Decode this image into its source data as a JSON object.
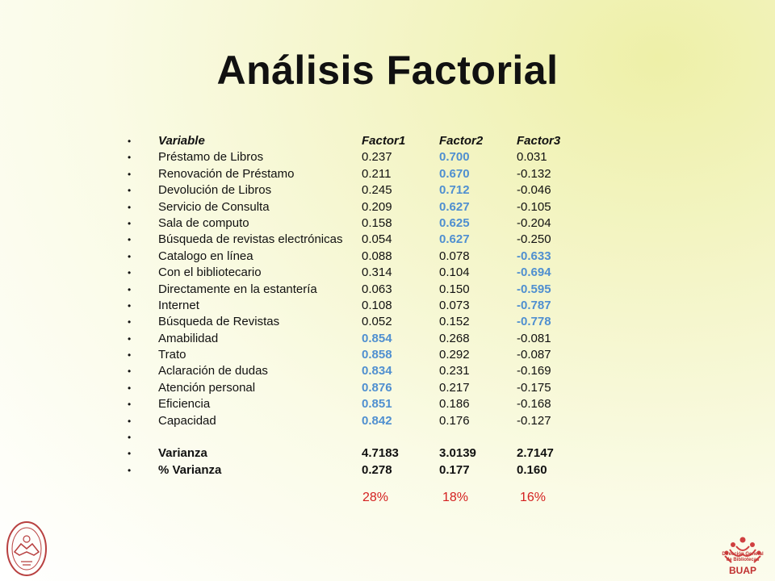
{
  "title": "Análisis Factorial",
  "header": [
    "Variable",
    "Factor1",
    "Factor2",
    "Factor3"
  ],
  "rows": [
    {
      "v": "Préstamo de Libros",
      "f1": "0.237",
      "f2": "0.700",
      "f3": "0.031",
      "hi": 2
    },
    {
      "v": "Renovación de Préstamo",
      "f1": "0.211",
      "f2": "0.670",
      "f3": "-0.132",
      "hi": 2
    },
    {
      "v": "Devolución de Libros",
      "f1": "0.245",
      "f2": "0.712",
      "f3": "-0.046",
      "hi": 2
    },
    {
      "v": "Servicio de Consulta",
      "f1": "0.209",
      "f2": "0.627",
      "f3": "-0.105",
      "hi": 2
    },
    {
      "v": "Sala de computo",
      "f1": "0.158",
      "f2": "0.625",
      "f3": "-0.204",
      "hi": 2
    },
    {
      "v": "Búsqueda de revistas electrónicas",
      "f1": "0.054",
      "f2": "0.627",
      "f3": "-0.250",
      "hi": 2
    },
    {
      "v": "Catalogo en línea",
      "f1": "0.088",
      "f2": "0.078",
      "f3": "-0.633",
      "hi": 3
    },
    {
      "v": "Con el bibliotecario",
      "f1": "0.314",
      "f2": "0.104",
      "f3": "-0.694",
      "hi": 3
    },
    {
      "v": "Directamente en la estantería",
      "f1": "0.063",
      "f2": "0.150",
      "f3": "-0.595",
      "hi": 3
    },
    {
      "v": "Internet",
      "f1": "0.108",
      "f2": "0.073",
      "f3": "-0.787",
      "hi": 3
    },
    {
      "v": "Búsqueda de Revistas",
      "f1": "0.052",
      "f2": "0.152",
      "f3": "-0.778",
      "hi": 3
    },
    {
      "v": "Amabilidad",
      "f1": "0.854",
      "f2": "0.268",
      "f3": "-0.081",
      "hi": 1
    },
    {
      "v": "Trato",
      "f1": "0.858",
      "f2": "0.292",
      "f3": "-0.087",
      "hi": 1
    },
    {
      "v": "Aclaración de dudas",
      "f1": "0.834",
      "f2": "0.231",
      "f3": "-0.169",
      "hi": 1
    },
    {
      "v": "Atención personal",
      "f1": "0.876",
      "f2": "0.217",
      "f3": "-0.175",
      "hi": 1
    },
    {
      "v": "Eficiencia",
      "f1": "0.851",
      "f2": "0.186",
      "f3": "-0.168",
      "hi": 1
    },
    {
      "v": "Capacidad",
      "f1": "0.842",
      "f2": "0.176",
      "f3": "-0.127",
      "hi": 1
    }
  ],
  "varianza": {
    "label": "Varianza",
    "f1": "4.7183",
    "f2": "3.0139",
    "f3": "2.7147"
  },
  "pct_varianza": {
    "label": "% Varianza",
    "f1": "0.278",
    "f2": "0.177",
    "f3": "0.160"
  },
  "percentages": [
    "28%",
    "18%",
    "16%"
  ],
  "logo": {
    "line1": "Dirección General",
    "line2": "de Bibliotecas",
    "name": "BUAP"
  }
}
